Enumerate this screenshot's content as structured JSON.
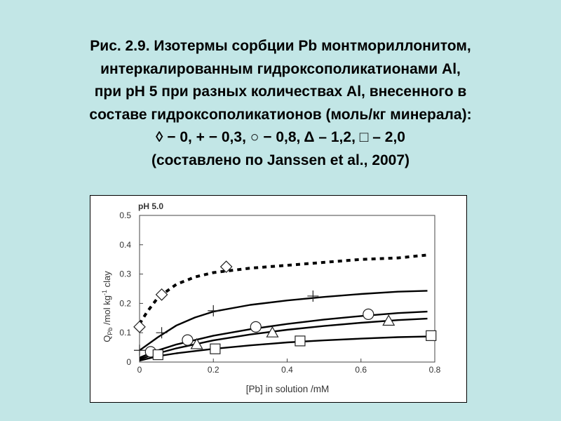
{
  "caption": {
    "lines": [
      "Рис. 2.9. Изотермы сорбции Pb монтмориллонитом,",
      "интеркалированным гидроксополикатионами Al,",
      "при pH 5 при разных количествах Al, внесенного в",
      "составе гидроксополикатионов (моль/кг минерала):",
      "◊ − 0, + − 0,3,  ○ − 0,8, Δ – 1,2, □ – 2,0",
      "(составлено по Janssen et al., 2007)"
    ]
  },
  "colors": {
    "background": "#c2e6e6",
    "panel": "#ffffff",
    "ink": "#000000"
  },
  "chart_data": {
    "type": "scatter",
    "panel_label": "pH 5.0",
    "xlabel": "[Pb] in solution /mM",
    "ylabel": "Q_Pb /mol kg^-1 clay",
    "ylabel_parts": {
      "q": "Q",
      "sub": "Pb",
      "mid": " /mol kg",
      "sup": "-1",
      "end": " clay"
    },
    "xlim": [
      0,
      0.8
    ],
    "ylim": [
      0,
      0.5
    ],
    "xticks": [
      "0",
      "0.2",
      "0.4",
      "0.6",
      "0.8"
    ],
    "yticks": [
      "0",
      "0.1",
      "0.2",
      "0.3",
      "0.4",
      "0.5"
    ],
    "grid": false,
    "legend": "none",
    "series": [
      {
        "marker": "diamond",
        "line_style": "dotted",
        "points": [
          [
            0.0,
            0.12
          ],
          [
            0.06,
            0.23
          ],
          [
            0.235,
            0.325
          ]
        ],
        "fit": [
          [
            0.0,
            0.13
          ],
          [
            0.02,
            0.17
          ],
          [
            0.05,
            0.22
          ],
          [
            0.1,
            0.265
          ],
          [
            0.15,
            0.29
          ],
          [
            0.2,
            0.305
          ],
          [
            0.3,
            0.32
          ],
          [
            0.4,
            0.33
          ],
          [
            0.5,
            0.34
          ],
          [
            0.6,
            0.35
          ],
          [
            0.7,
            0.355
          ],
          [
            0.78,
            0.365
          ]
        ]
      },
      {
        "marker": "plus",
        "line_style": "solid",
        "points": [
          [
            0.0,
            0.04
          ],
          [
            0.06,
            0.1
          ],
          [
            0.2,
            0.175
          ],
          [
            0.47,
            0.225
          ]
        ],
        "fit": [
          [
            0.0,
            0.04
          ],
          [
            0.05,
            0.085
          ],
          [
            0.1,
            0.125
          ],
          [
            0.15,
            0.152
          ],
          [
            0.2,
            0.172
          ],
          [
            0.3,
            0.195
          ],
          [
            0.4,
            0.21
          ],
          [
            0.5,
            0.222
          ],
          [
            0.6,
            0.232
          ],
          [
            0.7,
            0.24
          ],
          [
            0.78,
            0.243
          ]
        ]
      },
      {
        "marker": "circle",
        "line_style": "solid",
        "points": [
          [
            0.03,
            0.035
          ],
          [
            0.13,
            0.075
          ],
          [
            0.315,
            0.12
          ],
          [
            0.62,
            0.163
          ]
        ],
        "fit": [
          [
            0.0,
            0.015
          ],
          [
            0.05,
            0.04
          ],
          [
            0.1,
            0.06
          ],
          [
            0.2,
            0.09
          ],
          [
            0.3,
            0.112
          ],
          [
            0.4,
            0.13
          ],
          [
            0.5,
            0.145
          ],
          [
            0.6,
            0.157
          ],
          [
            0.7,
            0.167
          ],
          [
            0.78,
            0.172
          ]
        ]
      },
      {
        "marker": "triangle",
        "line_style": "solid",
        "points": [
          [
            0.155,
            0.06
          ],
          [
            0.36,
            0.1
          ],
          [
            0.675,
            0.14
          ]
        ],
        "fit": [
          [
            0.0,
            0.01
          ],
          [
            0.05,
            0.03
          ],
          [
            0.1,
            0.047
          ],
          [
            0.2,
            0.074
          ],
          [
            0.3,
            0.094
          ],
          [
            0.4,
            0.11
          ],
          [
            0.5,
            0.123
          ],
          [
            0.6,
            0.134
          ],
          [
            0.7,
            0.143
          ],
          [
            0.78,
            0.148
          ]
        ]
      },
      {
        "marker": "square",
        "line_style": "solid",
        "points": [
          [
            0.05,
            0.025
          ],
          [
            0.205,
            0.045
          ],
          [
            0.435,
            0.072
          ],
          [
            0.79,
            0.09
          ]
        ],
        "fit": [
          [
            0.0,
            0.005
          ],
          [
            0.05,
            0.02
          ],
          [
            0.1,
            0.03
          ],
          [
            0.2,
            0.045
          ],
          [
            0.3,
            0.057
          ],
          [
            0.4,
            0.067
          ],
          [
            0.5,
            0.074
          ],
          [
            0.6,
            0.08
          ],
          [
            0.7,
            0.085
          ],
          [
            0.78,
            0.087
          ]
        ]
      }
    ]
  }
}
